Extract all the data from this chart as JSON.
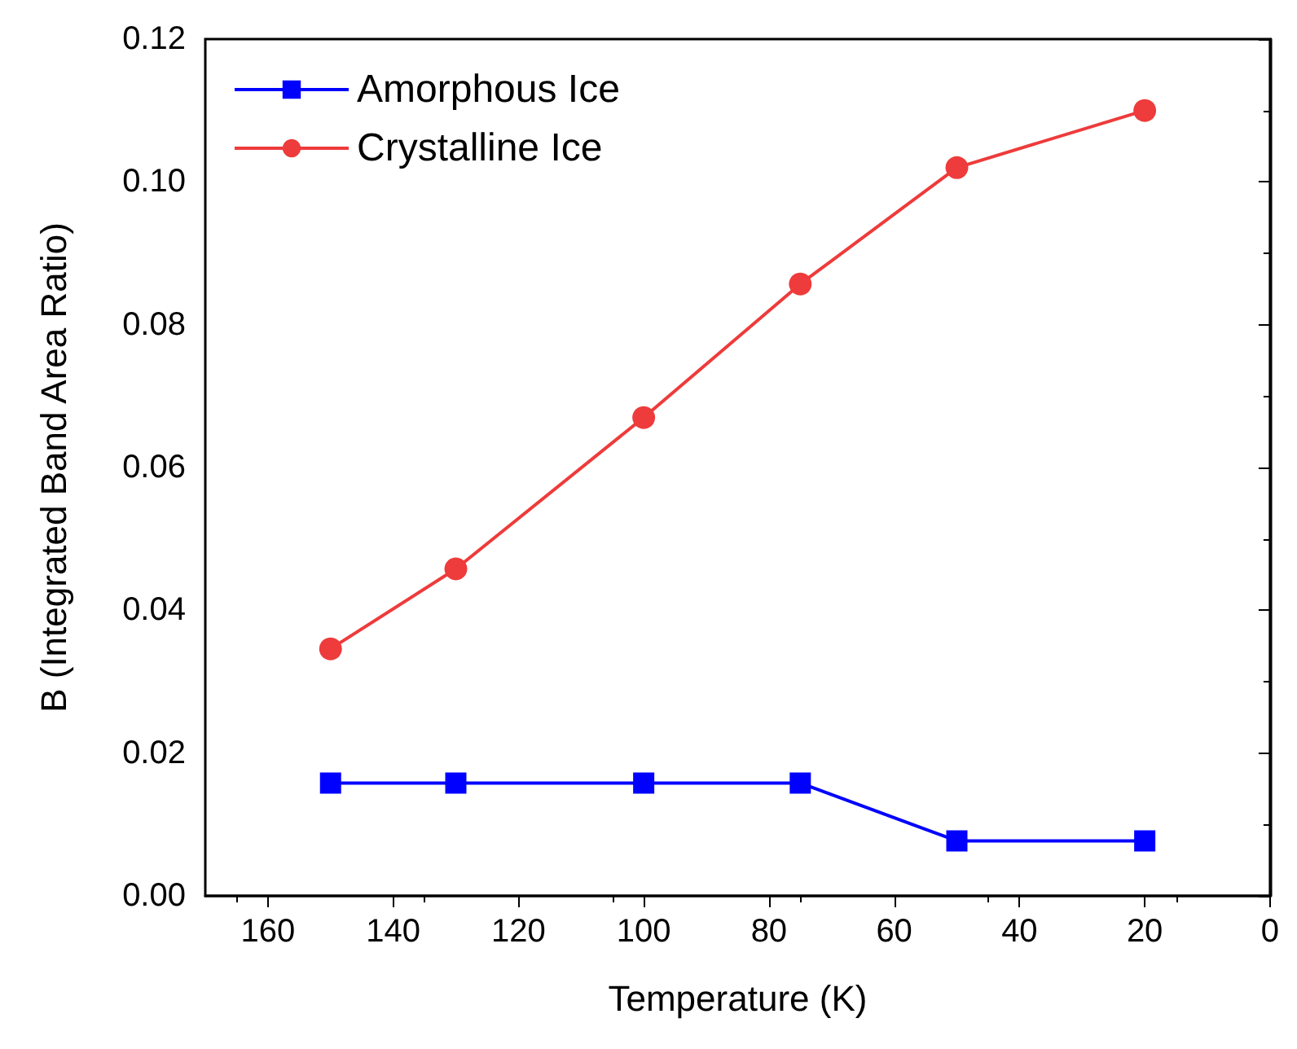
{
  "chart_data": {
    "type": "line",
    "xlabel": "Temperature (K)",
    "ylabel": "B (Integrated Band Area Ratio)",
    "x": [
      150,
      130,
      100,
      75,
      50,
      20
    ],
    "series": [
      {
        "name": "Amorphous Ice",
        "color": "#0000ff",
        "marker": "square",
        "values": [
          0.0158,
          0.0158,
          0.0158,
          0.0158,
          0.0077,
          0.0077
        ]
      },
      {
        "name": "Crystalline Ice",
        "color": "#ee3b3b",
        "marker": "circle",
        "values": [
          0.0346,
          0.0458,
          0.067,
          0.0857,
          0.102,
          0.11
        ]
      }
    ],
    "xlim": [
      170,
      0
    ],
    "xticks": [
      160,
      140,
      120,
      100,
      80,
      60,
      40,
      20,
      0
    ],
    "ylim": [
      0,
      0.12
    ],
    "yticks": [
      {
        "value": 0,
        "label": "0.00"
      },
      0.02,
      0.04,
      0.06,
      0.08,
      {
        "value": 0.1,
        "label": "0.10"
      },
      0.12
    ],
    "legend": "top left",
    "grid": false,
    "line_style": "solid"
  }
}
